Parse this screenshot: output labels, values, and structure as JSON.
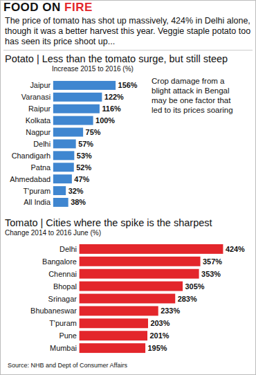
{
  "header": {
    "title": "FOOD ON FIRE",
    "intro": "The price of tomato has shot up massively, 424% in Delhi alone, though it was a better harvest this year. Veggie staple potato too has seen its price shoot up...",
    "source": "Source: NHB and Dept of Consumer Affairs"
  },
  "chart_data": [
    {
      "type": "bar",
      "orientation": "horizontal",
      "title": "Potato | Less than the tomato surge, but still steep",
      "subtitle": "Increase 2015 to 2016 (%)",
      "categories": [
        "Jaipur",
        "Varanasi",
        "Raipur",
        "Kolkata",
        "Nagpur",
        "Delhi",
        "Chandigarh",
        "Patna",
        "Ahmedabad",
        "T'puram",
        "All India"
      ],
      "values": [
        156,
        122,
        116,
        100,
        75,
        57,
        53,
        52,
        47,
        32,
        38
      ],
      "value_labels": [
        "156%",
        "122%",
        "116%",
        "100%",
        "75%",
        "57%",
        "53%",
        "52%",
        "47%",
        "32%",
        "38%"
      ],
      "color": "#3f86d0",
      "xlim": [
        0,
        480
      ],
      "xticks": [],
      "data_labels": true,
      "tick_labels": "y",
      "grid": false,
      "annotations": [
        "Crop damage from a blight attack in Bengal may be one factor that led to its prices soaring"
      ]
    },
    {
      "type": "bar",
      "orientation": "horizontal",
      "title": "Tomato | Cities where the spike is the sharpest",
      "subtitle": "Change 2014 to 2016 June (%)",
      "categories": [
        "Delhi",
        "Bangalore",
        "Chennai",
        "Bhopal",
        "Srinagar",
        "Bhubaneswar",
        "T'puram",
        "Pune",
        "Mumbai"
      ],
      "values": [
        424,
        357,
        353,
        305,
        283,
        233,
        203,
        201,
        195
      ],
      "value_labels": [
        "424%",
        "357%",
        "353%",
        "305%",
        "283%",
        "233%",
        "203%",
        "201%",
        "195%"
      ],
      "color": "#e3262b",
      "xlim": [
        0,
        450
      ],
      "xticks": [],
      "data_labels": true,
      "tick_labels": "y",
      "grid": false
    }
  ]
}
